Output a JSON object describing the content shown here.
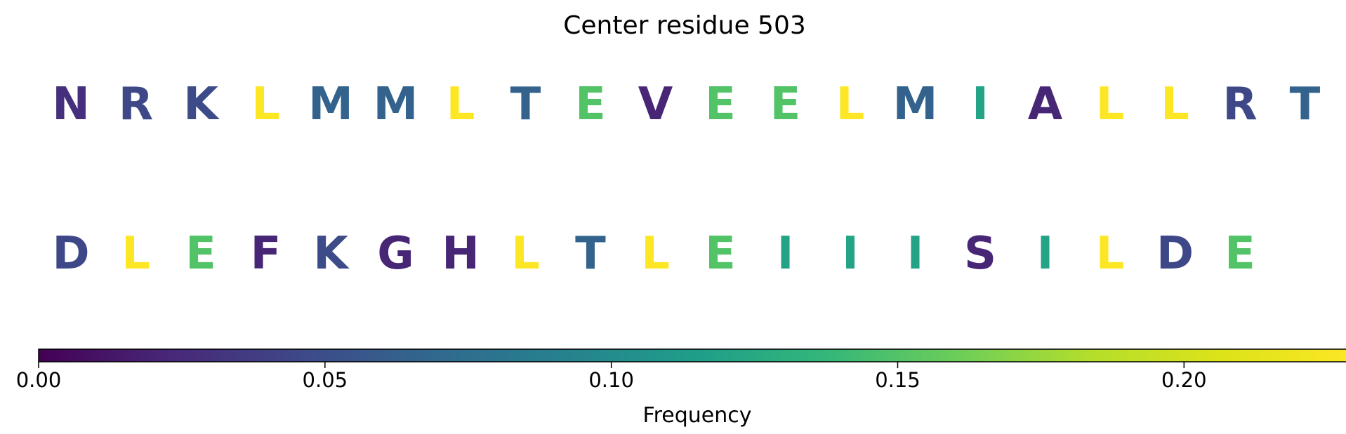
{
  "title": "Center residue 503",
  "chart_data": {
    "type": "sequence-colormap",
    "colormap": "viridis",
    "colorbar": {
      "label": "Frequency",
      "range": [
        0,
        0.23
      ],
      "ticks": [
        0.0,
        0.05,
        0.1,
        0.15,
        0.2
      ],
      "tick_labels": [
        "0.00",
        "0.05",
        "0.10",
        "0.15",
        "0.20"
      ]
    },
    "rows": [
      [
        {
          "residue": "N",
          "frequency": 0.028
        },
        {
          "residue": "R",
          "frequency": 0.045
        },
        {
          "residue": "K",
          "frequency": 0.048
        },
        {
          "residue": "L",
          "frequency": 0.23
        },
        {
          "residue": "M",
          "frequency": 0.065
        },
        {
          "residue": "M",
          "frequency": 0.065
        },
        {
          "residue": "L",
          "frequency": 0.23
        },
        {
          "residue": "T",
          "frequency": 0.065
        },
        {
          "residue": "E",
          "frequency": 0.15
        },
        {
          "residue": "V",
          "frequency": 0.022
        },
        {
          "residue": "E",
          "frequency": 0.15
        },
        {
          "residue": "E",
          "frequency": 0.15
        },
        {
          "residue": "L",
          "frequency": 0.23
        },
        {
          "residue": "M",
          "frequency": 0.065
        },
        {
          "residue": "I",
          "frequency": 0.12
        },
        {
          "residue": "A",
          "frequency": 0.022
        },
        {
          "residue": "L",
          "frequency": 0.23
        },
        {
          "residue": "L",
          "frequency": 0.23
        },
        {
          "residue": "R",
          "frequency": 0.045
        },
        {
          "residue": "T",
          "frequency": 0.065
        }
      ],
      [
        {
          "residue": "D",
          "frequency": 0.045
        },
        {
          "residue": "L",
          "frequency": 0.23
        },
        {
          "residue": "E",
          "frequency": 0.15
        },
        {
          "residue": "F",
          "frequency": 0.022
        },
        {
          "residue": "K",
          "frequency": 0.048
        },
        {
          "residue": "G",
          "frequency": 0.022
        },
        {
          "residue": "H",
          "frequency": 0.022
        },
        {
          "residue": "L",
          "frequency": 0.23
        },
        {
          "residue": "T",
          "frequency": 0.065
        },
        {
          "residue": "L",
          "frequency": 0.23
        },
        {
          "residue": "E",
          "frequency": 0.15
        },
        {
          "residue": "I",
          "frequency": 0.12
        },
        {
          "residue": "I",
          "frequency": 0.12
        },
        {
          "residue": "I",
          "frequency": 0.12
        },
        {
          "residue": "S",
          "frequency": 0.022
        },
        {
          "residue": "I",
          "frequency": 0.12
        },
        {
          "residue": "L",
          "frequency": 0.23
        },
        {
          "residue": "D",
          "frequency": 0.045
        },
        {
          "residue": "E",
          "frequency": 0.15
        }
      ]
    ]
  }
}
